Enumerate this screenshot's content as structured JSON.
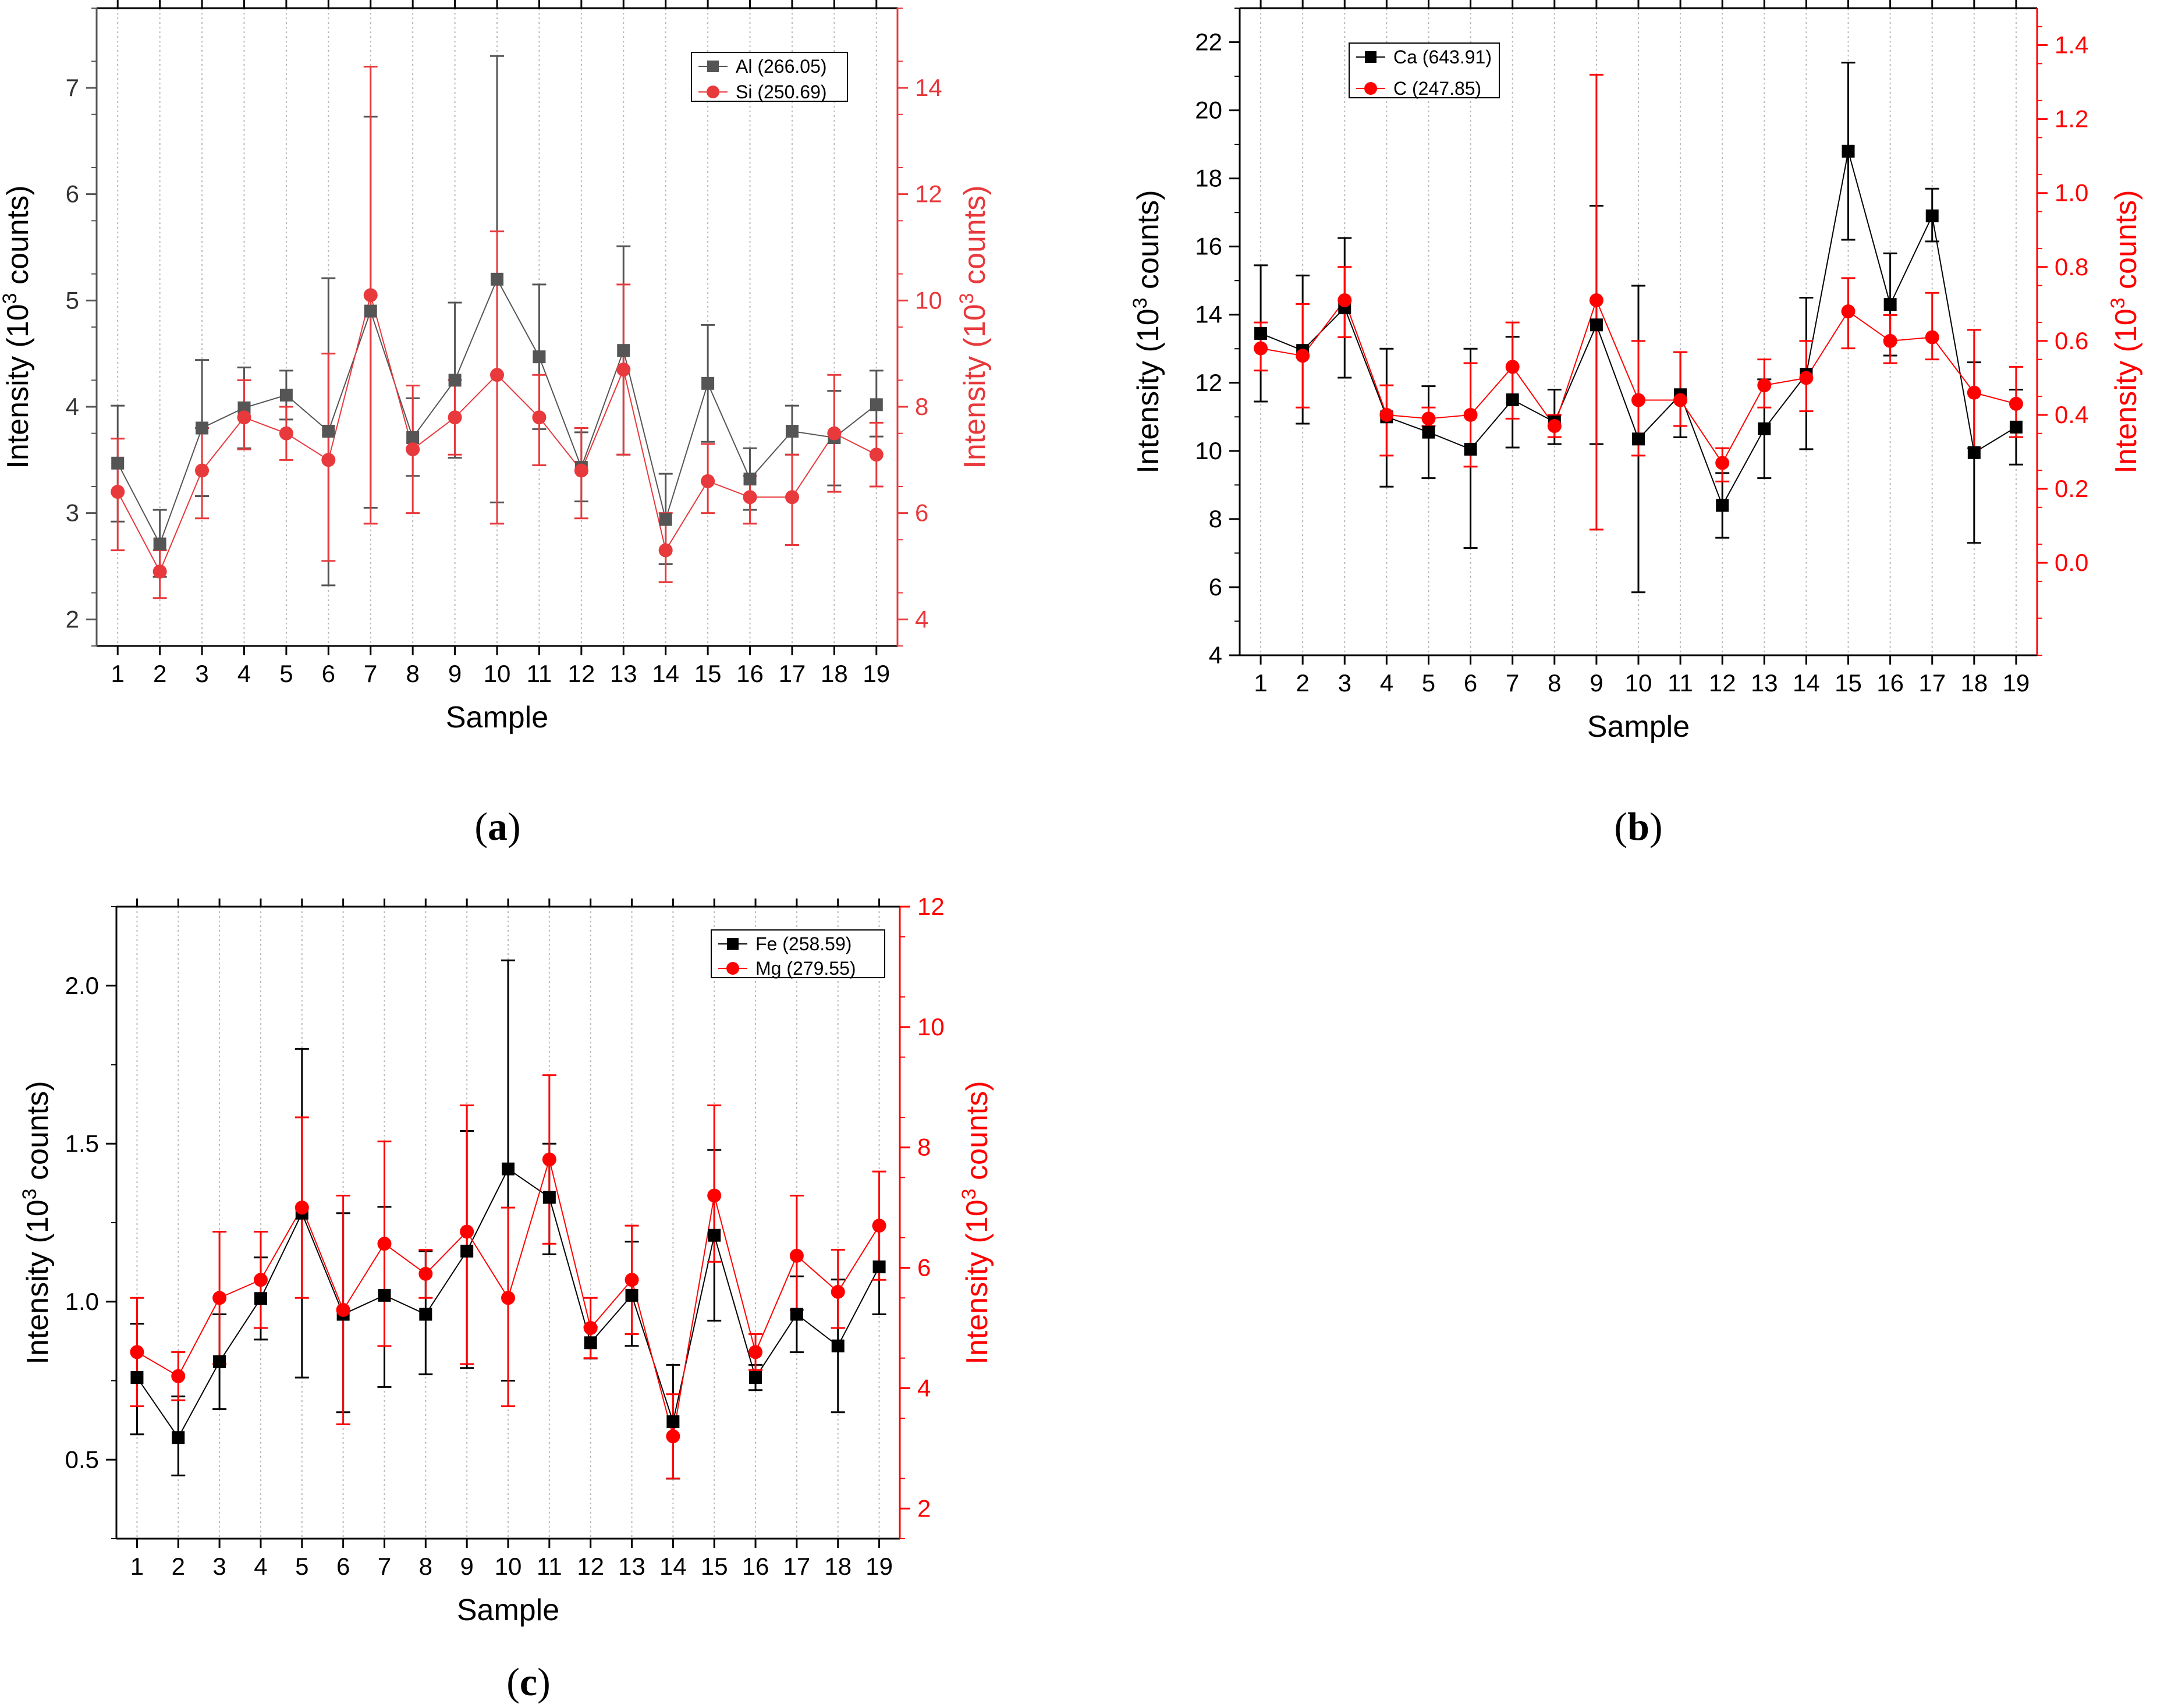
{
  "chart_data": [
    {
      "panel": "a",
      "type": "line",
      "title": "",
      "xlabel": "Sample",
      "ylabel": "Intensity (10^3 counts)",
      "ylabel_parts": [
        "Intensity (10",
        "3",
        " counts)"
      ],
      "y2label": "Intensity (10^3 counts)",
      "y2label_parts": [
        "Intensity (10",
        "3",
        " counts)"
      ],
      "x": [
        "1",
        "2",
        "3",
        "4",
        "5",
        "6",
        "7",
        "8",
        "9",
        "10",
        "11",
        "12",
        "13",
        "14",
        "15",
        "16",
        "17",
        "18",
        "19"
      ],
      "xlim": [
        0.5,
        19.5
      ],
      "ylim": [
        1.75,
        7.75
      ],
      "y2lim": [
        3.5,
        15.5
      ],
      "yticks": [
        2,
        3,
        4,
        5,
        6,
        7
      ],
      "y2ticks": [
        4,
        6,
        8,
        10,
        12,
        14
      ],
      "y_minor_step": 0.5,
      "y2_minor_step": 1,
      "grid": "vertical dotted",
      "legend_position": "top-right",
      "series": [
        {
          "name": "Al (266.05)",
          "axis": "left",
          "marker": "square",
          "color": "#555555",
          "values": [
            3.47,
            2.71,
            3.8,
            3.99,
            4.11,
            3.77,
            4.9,
            3.71,
            4.25,
            5.2,
            4.47,
            3.43,
            4.53,
            2.94,
            4.22,
            3.32,
            3.77,
            3.71,
            4.02
          ],
          "err_low": [
            2.92,
            2.4,
            3.16,
            3.61,
            3.88,
            2.32,
            3.05,
            3.35,
            3.52,
            3.1,
            3.79,
            3.11,
            3.55,
            2.52,
            3.67,
            3.03,
            3.55,
            3.26,
            3.72
          ],
          "err_high": [
            4.01,
            3.03,
            4.44,
            4.37,
            4.34,
            5.21,
            6.73,
            4.08,
            4.98,
            7.3,
            5.15,
            3.76,
            5.51,
            3.37,
            4.77,
            3.61,
            4.01,
            4.15,
            4.34
          ]
        },
        {
          "name": "Si (250.69)",
          "axis": "right",
          "marker": "circle",
          "color": "#e8393c",
          "values": [
            6.4,
            4.9,
            6.8,
            7.8,
            7.5,
            7.0,
            10.1,
            7.2,
            7.8,
            8.6,
            7.8,
            6.8,
            8.7,
            5.3,
            6.6,
            6.3,
            6.3,
            7.5,
            7.1
          ],
          "err_low": [
            5.3,
            4.4,
            5.9,
            7.2,
            7.0,
            5.1,
            5.8,
            6.0,
            7.1,
            5.8,
            6.9,
            5.9,
            7.1,
            4.7,
            6.0,
            5.8,
            5.4,
            6.4,
            6.5
          ],
          "err_high": [
            7.4,
            5.3,
            7.6,
            8.5,
            8.0,
            9.0,
            14.4,
            8.4,
            8.5,
            11.3,
            8.6,
            7.6,
            10.3,
            6.0,
            7.3,
            6.7,
            7.1,
            8.6,
            7.7
          ]
        }
      ]
    },
    {
      "panel": "b",
      "type": "line",
      "title": "",
      "xlabel": "Sample",
      "ylabel": "Intensity (10^3 counts)",
      "ylabel_parts": [
        "Intensity (10",
        "3",
        " counts)"
      ],
      "y2label": "Intensity (10^3 counts)",
      "y2label_parts": [
        "Intensity (10",
        "3",
        " counts)"
      ],
      "x": [
        "1",
        "2",
        "3",
        "4",
        "5",
        "6",
        "7",
        "8",
        "9",
        "10",
        "11",
        "12",
        "13",
        "14",
        "15",
        "16",
        "17",
        "18",
        "19"
      ],
      "xlim": [
        0.5,
        19.5
      ],
      "ylim": [
        4,
        23
      ],
      "y2lim": [
        -0.25,
        1.5
      ],
      "yticks": [
        4,
        6,
        8,
        10,
        12,
        14,
        16,
        18,
        20,
        22
      ],
      "y2ticks": [
        0.0,
        0.2,
        0.4,
        0.6,
        0.8,
        1.0,
        1.2,
        1.4
      ],
      "y2tick_labels": [
        "0.0",
        "0.2",
        "0.4",
        "0.6",
        "0.8",
        "1.0",
        "1.2",
        "1.4"
      ],
      "y_minor_step": 1,
      "y2_minor_step": 0.1,
      "grid": "vertical dotted",
      "legend_position": "top-left",
      "series": [
        {
          "name": "Ca (643.91)",
          "axis": "left",
          "marker": "square",
          "color": "#000000",
          "values": [
            13.45,
            12.95,
            14.2,
            11.0,
            10.55,
            10.05,
            11.5,
            10.85,
            13.7,
            10.35,
            11.65,
            8.4,
            10.65,
            12.25,
            18.8,
            14.3,
            16.9,
            9.95,
            10.7
          ],
          "err_low": [
            11.45,
            10.8,
            12.15,
            8.95,
            9.2,
            7.15,
            10.1,
            10.2,
            10.2,
            5.85,
            10.4,
            7.45,
            9.2,
            10.05,
            16.2,
            12.8,
            16.15,
            7.3,
            9.6
          ],
          "err_high": [
            15.45,
            15.15,
            16.25,
            13.0,
            11.9,
            13.0,
            13.35,
            11.8,
            17.2,
            14.85,
            12.9,
            9.35,
            12.1,
            14.5,
            21.4,
            15.8,
            17.7,
            12.6,
            11.8
          ]
        },
        {
          "name": "C (247.85)",
          "axis": "right",
          "marker": "circle",
          "color": "#ff0000",
          "values": [
            0.58,
            0.56,
            0.71,
            0.4,
            0.39,
            0.4,
            0.53,
            0.37,
            0.71,
            0.44,
            0.44,
            0.27,
            0.48,
            0.5,
            0.68,
            0.6,
            0.61,
            0.46,
            0.43
          ],
          "err_low": [
            0.52,
            0.42,
            0.61,
            0.29,
            0.37,
            0.26,
            0.39,
            0.34,
            0.09,
            0.29,
            0.37,
            0.22,
            0.42,
            0.41,
            0.58,
            0.54,
            0.55,
            0.31,
            0.34
          ],
          "err_high": [
            0.65,
            0.7,
            0.8,
            0.48,
            0.42,
            0.54,
            0.65,
            0.4,
            1.32,
            0.6,
            0.57,
            0.31,
            0.55,
            0.6,
            0.77,
            0.67,
            0.73,
            0.63,
            0.53
          ]
        }
      ]
    },
    {
      "panel": "c",
      "type": "line",
      "title": "",
      "xlabel": "Sample",
      "ylabel": "Intensity (10^3 counts)",
      "ylabel_parts": [
        "Intensity (10",
        "3",
        " counts)"
      ],
      "y2label": "Intensity (10^3 counts)",
      "y2label_parts": [
        "Intensity (10",
        "3",
        " counts)"
      ],
      "x": [
        "1",
        "2",
        "3",
        "4",
        "5",
        "6",
        "7",
        "8",
        "9",
        "10",
        "11",
        "12",
        "13",
        "14",
        "15",
        "16",
        "17",
        "18",
        "19"
      ],
      "xlim": [
        0.5,
        19.5
      ],
      "ylim": [
        0.25,
        2.25
      ],
      "y2lim": [
        1.5,
        12
      ],
      "yticks": [
        0.5,
        1.0,
        1.5,
        2.0
      ],
      "ytick_labels": [
        "0.5",
        "1.0",
        "1.5",
        "2.0"
      ],
      "y2ticks": [
        2,
        4,
        6,
        8,
        10,
        12
      ],
      "y_minor_step": 0.25,
      "y2_minor_step": 1,
      "grid": "vertical dotted",
      "legend_position": "top-right",
      "series": [
        {
          "name": "Fe (258.59)",
          "axis": "left",
          "marker": "square",
          "color": "#000000",
          "values": [
            0.76,
            0.57,
            0.81,
            1.01,
            1.28,
            0.96,
            1.02,
            0.96,
            1.16,
            1.42,
            1.33,
            0.87,
            1.02,
            0.62,
            1.21,
            0.76,
            0.96,
            0.86,
            1.11
          ],
          "err_low": [
            0.58,
            0.45,
            0.66,
            0.88,
            0.76,
            0.65,
            0.73,
            0.77,
            0.79,
            0.75,
            1.15,
            0.82,
            0.86,
            0.44,
            0.94,
            0.72,
            0.84,
            0.65,
            0.96
          ],
          "err_high": [
            0.93,
            0.7,
            0.96,
            1.14,
            1.8,
            1.28,
            1.3,
            1.16,
            1.54,
            2.08,
            1.5,
            0.92,
            1.19,
            0.8,
            1.48,
            0.8,
            1.08,
            1.07,
            1.24
          ]
        },
        {
          "name": "Mg (279.55)",
          "axis": "right",
          "marker": "circle",
          "color": "#ff0000",
          "values": [
            4.6,
            4.2,
            5.5,
            5.8,
            7.0,
            5.3,
            6.4,
            5.9,
            6.6,
            5.5,
            7.8,
            5.0,
            5.8,
            3.2,
            7.2,
            4.6,
            6.2,
            5.6,
            6.7
          ],
          "err_low": [
            3.7,
            3.8,
            4.4,
            5.0,
            5.5,
            3.4,
            4.7,
            5.5,
            4.4,
            3.7,
            6.4,
            4.5,
            4.9,
            2.5,
            6.1,
            4.3,
            5.3,
            5.0,
            5.8
          ],
          "err_high": [
            5.5,
            4.6,
            6.6,
            6.6,
            8.5,
            7.2,
            8.1,
            6.3,
            8.7,
            7.0,
            9.2,
            5.5,
            6.7,
            3.9,
            8.7,
            4.9,
            7.2,
            6.3,
            7.6
          ]
        }
      ]
    }
  ],
  "panel_labels": [
    {
      "open": "(",
      "letter": "a",
      "close": ")"
    },
    {
      "open": "(",
      "letter": "b",
      "close": ")"
    },
    {
      "open": "(",
      "letter": "c",
      "close": ")"
    }
  ]
}
